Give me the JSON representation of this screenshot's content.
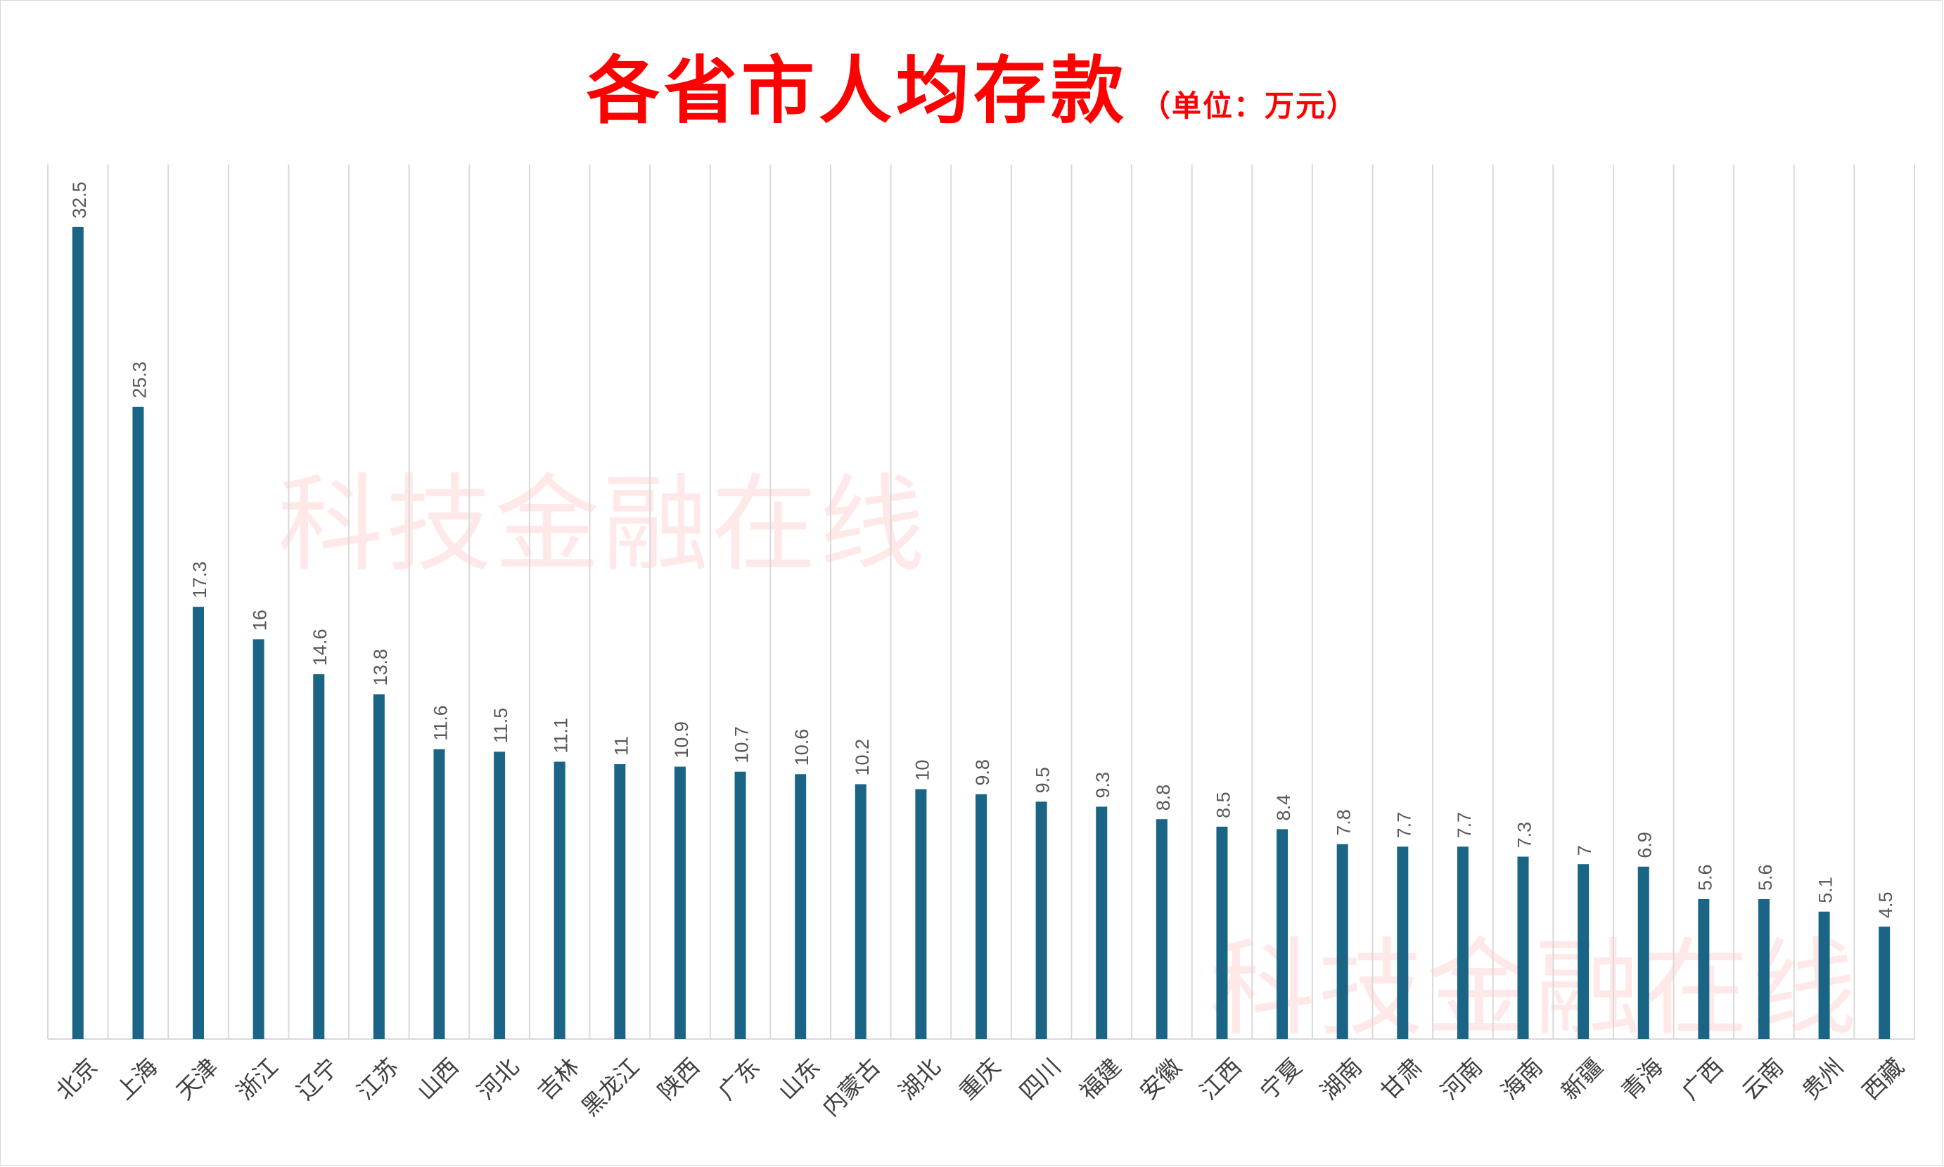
{
  "chart_data": {
    "type": "bar",
    "title": "各省市人均存款",
    "subtitle": "（单位：万元）",
    "categories": [
      "北京",
      "上海",
      "天津",
      "浙江",
      "辽宁",
      "江苏",
      "山西",
      "河北",
      "吉林",
      "黑龙江",
      "陕西",
      "广东",
      "山东",
      "内蒙古",
      "湖北",
      "重庆",
      "四川",
      "福建",
      "安徽",
      "江西",
      "宁夏",
      "湖南",
      "甘肃",
      "河南",
      "海南",
      "新疆",
      "青海",
      "广西",
      "云南",
      "贵州",
      "西藏"
    ],
    "values": [
      32.5,
      25.3,
      17.3,
      16,
      14.6,
      13.8,
      11.6,
      11.5,
      11.1,
      11,
      10.9,
      10.7,
      10.6,
      10.2,
      10,
      9.8,
      9.5,
      9.3,
      8.8,
      8.5,
      8.4,
      7.8,
      7.7,
      7.7,
      7.3,
      7,
      6.9,
      5.6,
      5.6,
      5.1,
      4.5
    ],
    "ylim": [
      0,
      35
    ],
    "grid": "vertical",
    "bar_color": "#1a6585",
    "label_color": "#595959",
    "xlabel": "",
    "ylabel": ""
  },
  "watermark": "科技金融在线"
}
